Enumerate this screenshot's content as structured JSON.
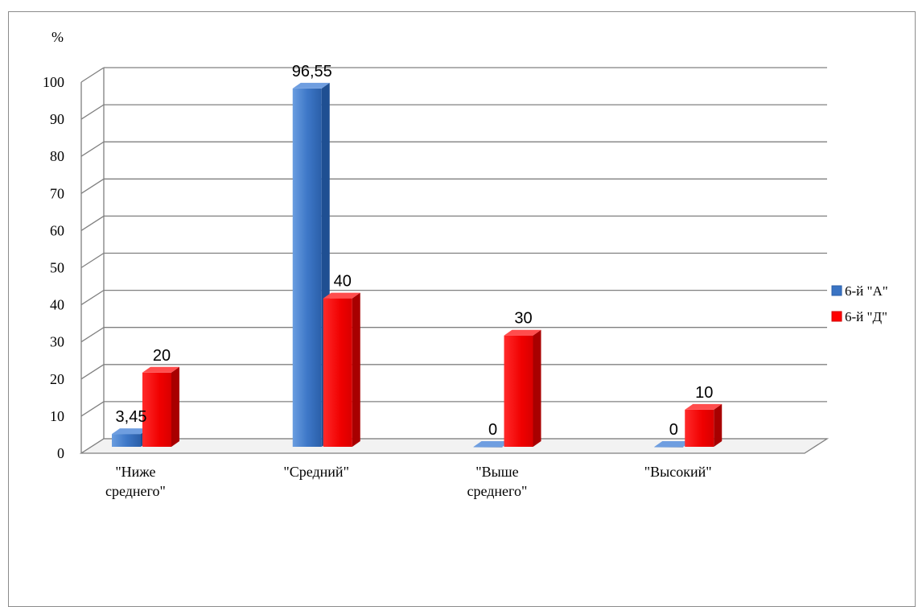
{
  "chart_data": {
    "type": "bar",
    "title": "",
    "ylabel": "%",
    "xlabel": "",
    "ylim": [
      0,
      100
    ],
    "yticks": [
      0,
      10,
      20,
      30,
      40,
      50,
      60,
      70,
      80,
      90,
      100
    ],
    "grid": true,
    "legend": "right",
    "categories": [
      [
        "\"Ниже",
        "среднего\""
      ],
      [
        "\"Средний\""
      ],
      [
        "\"Выше",
        "среднего\""
      ],
      [
        "\"Высокий\""
      ]
    ],
    "series": [
      {
        "name": "6-й \"А\"",
        "color": "#3a74c4",
        "values": [
          3.45,
          96.55,
          0,
          0
        ],
        "labels": [
          "3,45",
          "96,55",
          "0",
          "0"
        ]
      },
      {
        "name": "6-й \"Д\"",
        "color": "#ff0000",
        "values": [
          20,
          40,
          30,
          10
        ],
        "labels": [
          "20",
          "40",
          "30",
          "10"
        ]
      }
    ]
  }
}
